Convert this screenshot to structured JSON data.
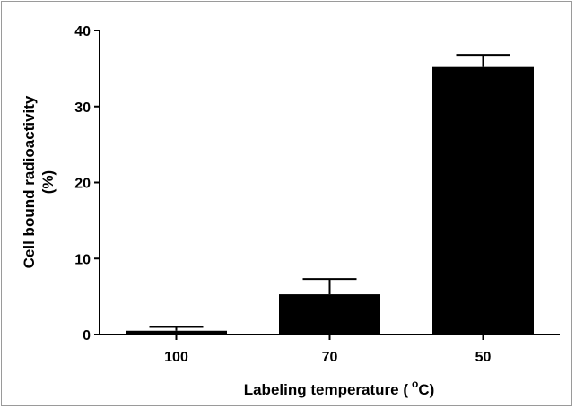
{
  "chart_data": {
    "type": "bar",
    "categories": [
      "100",
      "70",
      "50"
    ],
    "values": [
      0.5,
      5.3,
      35.2
    ],
    "errors": [
      0.5,
      2.0,
      1.6
    ],
    "xlabel_main": "Labeling temperature (",
    "xlabel_sup": "o",
    "xlabel_end": "C)",
    "ylabel_line1": "Cell bound radioactivity",
    "ylabel_line2": "(%)",
    "ylim": [
      0,
      40
    ],
    "yticks": [
      0,
      10,
      20,
      30,
      40
    ],
    "grid": false,
    "legend": "none",
    "colors": {
      "bar": "#000000",
      "axis": "#000000"
    }
  }
}
